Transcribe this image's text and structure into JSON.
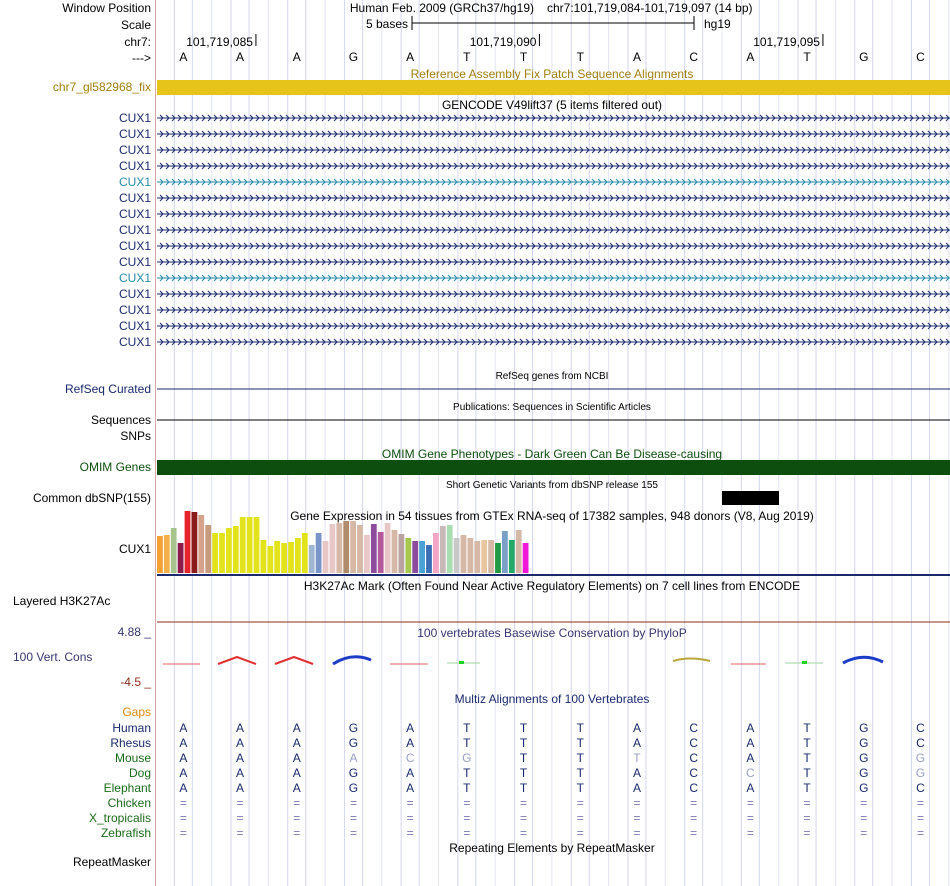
{
  "colors": {
    "navy": "#1a2a6c",
    "gene_teal": "#2a8aa8",
    "omim": "#0d4d0d",
    "gold": "#e6c419",
    "gold_text": "#a08010",
    "conservation_max": "#36366e",
    "conservation_min": "#8c2d1b",
    "grid": "#c8cbe8",
    "black": "#000000"
  },
  "header": {
    "window_position_label": "Window Position",
    "scale_label": "Scale",
    "chrom_label": "chr7:",
    "strand_label": "--->",
    "assembly": "Human Feb. 2009 (GRCh37/hg19)",
    "position": "chr7:101,719,084-101,719,097 (14 bp)",
    "scale_text": "5 bases",
    "db_text": "hg19",
    "coord_ticks": [
      "101,719,085",
      "101,719,090",
      "101,719,095"
    ]
  },
  "bases": [
    "A",
    "A",
    "A",
    "G",
    "A",
    "T",
    "T",
    "T",
    "A",
    "C",
    "A",
    "T",
    "G",
    "C"
  ],
  "tracks": {
    "fix_patch": {
      "label": "chr7_gl582968_fix",
      "title": "Reference Assembly Fix Patch Sequence Alignments"
    },
    "gencode": {
      "title": "GENCODE V49lift37 (5 items filtered out)",
      "genes": [
        {
          "name": "CUX1",
          "variant": "navy"
        },
        {
          "name": "CUX1",
          "variant": "navy"
        },
        {
          "name": "CUX1",
          "variant": "navy"
        },
        {
          "name": "CUX1",
          "variant": "navy"
        },
        {
          "name": "CUX1",
          "variant": "teal"
        },
        {
          "name": "CUX1",
          "variant": "navy"
        },
        {
          "name": "CUX1",
          "variant": "navy"
        },
        {
          "name": "CUX1",
          "variant": "navy"
        },
        {
          "name": "CUX1",
          "variant": "navy"
        },
        {
          "name": "CUX1",
          "variant": "navy"
        },
        {
          "name": "CUX1",
          "variant": "teal"
        },
        {
          "name": "CUX1",
          "variant": "navy"
        },
        {
          "name": "CUX1",
          "variant": "navy"
        },
        {
          "name": "CUX1",
          "variant": "navy"
        },
        {
          "name": "CUX1",
          "variant": "navy"
        }
      ]
    },
    "refseq": {
      "title": "RefSeq genes from NCBI",
      "label": "RefSeq Curated"
    },
    "publications": {
      "title": "Publications: Sequences in Scientific Articles",
      "label1": "Sequences",
      "label2": "SNPs"
    },
    "omim": {
      "title": "OMIM Gene Phenotypes - Dark Green Can Be Disease-causing",
      "label": "OMIM Genes"
    },
    "dbsnp": {
      "title": "Short Genetic Variants from dbSNP release 155",
      "label": "Common dbSNP(155)"
    },
    "gtex": {
      "title": "Gene Expression in 54 tissues from GTEx RNA-seq of 17382 samples, 948 donors (V8, Aug 2019)",
      "label": "CUX1",
      "values": [
        37,
        38,
        45,
        30,
        62,
        61,
        58,
        48,
        40,
        40,
        45,
        47,
        56,
        56,
        56,
        33,
        27,
        32,
        30,
        31,
        35,
        40,
        28,
        40,
        32,
        49,
        50,
        52,
        52,
        48,
        38,
        49,
        41,
        50,
        43,
        39,
        35,
        32,
        32,
        28,
        40,
        47,
        48,
        35,
        38,
        35,
        32,
        33,
        33,
        30,
        42,
        33,
        43,
        30
      ],
      "colors": [
        "#f4a033",
        "#f4b04b",
        "#a7c48e",
        "#8c1a4b",
        "#e6232b",
        "#8b1a1a",
        "#d6a28c",
        "#c89b7d",
        "#e3e31b",
        "#e3e31b",
        "#e3e31b",
        "#e3e31b",
        "#e3e31b",
        "#e3e31b",
        "#e3e31b",
        "#e3e31b",
        "#e3e31b",
        "#e3e31b",
        "#e3e31b",
        "#e3e31b",
        "#e3e31b",
        "#e3e31b",
        "#9fb6d3",
        "#7a95c9",
        "#e8c7c7",
        "#e8c7c7",
        "#d6b8a6",
        "#b08b6c",
        "#d6b8a6",
        "#d6b8a6",
        "#e8c7c7",
        "#8c4b9c",
        "#b4599c",
        "#e8c7c7",
        "#d6b8a6",
        "#bca3a3",
        "#a6c84f",
        "#8c4b9c",
        "#4aa3d7",
        "#3d6fb7",
        "#f4a6c4",
        "#c8b8b8",
        "#a9ddb2",
        "#c8c8c8",
        "#d6b8a6",
        "#d6b8a6",
        "#d6b8a6",
        "#e8c7a0",
        "#d6b8a6",
        "#229944",
        "#7aa0c8",
        "#22aa66",
        "#d6b8a6",
        "#ef17d8"
      ]
    },
    "h3k27ac": {
      "title": "H3K27Ac Mark (Often Found Near Active Regulatory Elements) on 7 cell lines from ENCODE",
      "label": "Layered H3K27Ac"
    },
    "conservation": {
      "title": "100 vertebrates Basewise Conservation by PhyloP",
      "label": "100 Vert. Cons",
      "max_label": "4.88 _",
      "min_label": "-4.5 _"
    },
    "multiz": {
      "title": "Multiz Alignments of 100 Vertebrates",
      "gaps_label": "Gaps",
      "species": [
        {
          "name": "Human",
          "kind": "primate",
          "bases": [
            "A",
            "A",
            "A",
            "G",
            "A",
            "T",
            "T",
            "T",
            "A",
            "C",
            "A",
            "T",
            "G",
            "C"
          ],
          "light": []
        },
        {
          "name": "Rhesus",
          "kind": "primate",
          "bases": [
            "A",
            "A",
            "A",
            "G",
            "A",
            "T",
            "T",
            "T",
            "A",
            "C",
            "A",
            "T",
            "G",
            "C"
          ],
          "light": []
        },
        {
          "name": "Mouse",
          "kind": "mammal",
          "bases": [
            "A",
            "A",
            "A",
            "A",
            "C",
            "G",
            "T",
            "T",
            "T",
            "C",
            "A",
            "T",
            "G",
            "G"
          ],
          "light": [
            3,
            4,
            5,
            8,
            13
          ]
        },
        {
          "name": "Dog",
          "kind": "mammal",
          "bases": [
            "A",
            "A",
            "A",
            "G",
            "A",
            "T",
            "T",
            "T",
            "A",
            "C",
            "C",
            "T",
            "G",
            "G"
          ],
          "light": [
            10,
            13
          ]
        },
        {
          "name": "Elephant",
          "kind": "mammal",
          "bases": [
            "A",
            "A",
            "A",
            "G",
            "A",
            "T",
            "T",
            "T",
            "A",
            "C",
            "A",
            "T",
            "G",
            "C"
          ],
          "light": []
        },
        {
          "name": "Chicken",
          "kind": "vertebrate",
          "bases": [
            "=",
            "=",
            "=",
            "=",
            "=",
            "=",
            "=",
            "=",
            "=",
            "=",
            "=",
            "=",
            "=",
            "="
          ],
          "light": []
        },
        {
          "name": "X_tropicalis",
          "kind": "vertebrate",
          "bases": [
            "=",
            "=",
            "=",
            "=",
            "=",
            "=",
            "=",
            "=",
            "=",
            "=",
            "=",
            "=",
            "=",
            "="
          ],
          "light": []
        },
        {
          "name": "Zebrafish",
          "kind": "vertebrate",
          "bases": [
            "=",
            "=",
            "=",
            "=",
            "=",
            "=",
            "=",
            "=",
            "=",
            "=",
            "=",
            "=",
            "=",
            "="
          ],
          "light": []
        }
      ]
    },
    "repeatmasker": {
      "title": "Repeating Elements by RepeatMasker",
      "label": "RepeatMasker"
    }
  }
}
